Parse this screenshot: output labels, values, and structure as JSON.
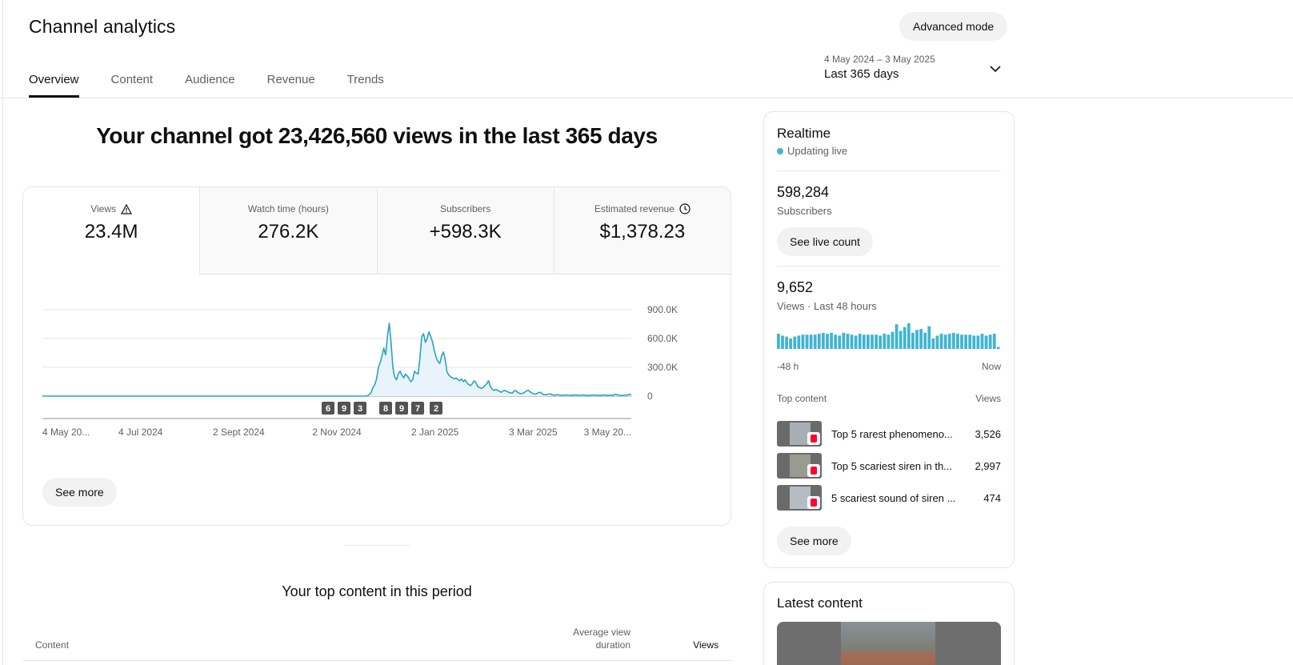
{
  "header": {
    "title": "Channel analytics",
    "advanced_mode": "Advanced mode",
    "tabs": [
      "Overview",
      "Content",
      "Audience",
      "Revenue",
      "Trends"
    ],
    "date_sub": "4 May 2024 – 3 May 2025",
    "date_main": "Last 365 days"
  },
  "main": {
    "headline": "Your channel got 23,426,560 views in the last 365 days",
    "metrics": [
      {
        "label": "Views",
        "value": "23.4M"
      },
      {
        "label": "Watch time (hours)",
        "value": "276.2K"
      },
      {
        "label": "Subscribers",
        "value": "+598.3K"
      },
      {
        "label": "Estimated revenue",
        "value": "$1,378.23"
      }
    ],
    "see_more": "See more",
    "top_content_title": "Your top content in this period",
    "table_headers": {
      "content": "Content",
      "avd": "Average view duration",
      "views": "Views"
    }
  },
  "chart_data": {
    "type": "area",
    "series": [
      {
        "values": [
          0,
          0,
          0,
          0,
          0,
          0,
          0,
          0,
          0,
          0,
          0,
          0,
          0,
          0,
          0,
          0,
          0,
          0,
          0,
          0,
          0,
          0,
          0,
          0,
          0,
          0,
          0,
          0,
          0,
          0,
          0,
          0,
          0,
          0,
          0,
          0,
          0,
          0,
          0,
          0,
          0,
          0,
          0,
          0,
          0,
          0,
          0,
          0,
          0,
          0,
          0,
          0,
          0,
          0,
          0,
          0,
          0,
          0,
          0,
          0,
          0,
          0,
          0,
          0,
          0,
          0,
          0,
          0,
          0,
          0,
          0,
          0,
          0,
          0,
          0,
          0,
          0,
          0,
          0,
          0,
          0,
          0,
          0,
          0,
          0,
          0,
          0,
          0,
          0,
          0,
          0,
          0,
          0,
          0,
          0,
          0,
          0,
          0,
          0,
          0,
          0,
          0,
          0,
          0,
          0,
          0,
          0,
          0,
          0,
          0,
          0,
          0,
          0,
          0,
          0,
          0,
          0,
          0,
          0,
          0,
          0,
          0,
          0,
          0,
          0,
          0,
          0,
          0,
          0,
          0,
          0,
          0,
          0,
          0,
          0,
          0,
          0,
          0,
          0,
          0,
          0,
          0,
          0,
          0,
          0,
          0,
          0,
          0,
          0,
          0,
          0,
          0,
          0,
          0,
          0,
          0,
          0,
          0,
          0,
          0,
          0,
          0,
          0,
          0,
          0,
          0,
          0,
          0,
          0,
          0,
          0,
          0,
          0,
          0,
          0,
          0,
          0,
          0,
          0,
          0,
          5000,
          15000,
          40000,
          90000,
          120000,
          180000,
          300000,
          350000,
          420000,
          500000,
          430000,
          620000,
          760000,
          560000,
          300000,
          200000,
          170000,
          230000,
          260000,
          220000,
          190000,
          230000,
          210000,
          180000,
          150000,
          170000,
          260000,
          240000,
          230000,
          400000,
          620000,
          650000,
          560000,
          600000,
          670000,
          620000,
          560000,
          470000,
          400000,
          360000,
          340000,
          420000,
          460000,
          380000,
          250000,
          220000,
          200000,
          190000,
          180000,
          190000,
          170000,
          160000,
          180000,
          150000,
          170000,
          140000,
          120000,
          110000,
          130000,
          160000,
          140000,
          100000,
          90000,
          80000,
          90000,
          110000,
          130000,
          160000,
          100000,
          70000,
          60000,
          70000,
          60000,
          50000,
          40000,
          55000,
          60000,
          50000,
          40000,
          35000,
          30000,
          50000,
          60000,
          40000,
          30000,
          25000,
          30000,
          40000,
          55000,
          60000,
          45000,
          30000,
          25000,
          20000,
          30000,
          40000,
          35000,
          20000,
          15000,
          15000,
          20000,
          25000,
          15000,
          10000,
          10000,
          15000,
          12000,
          10000,
          8000,
          10000,
          12000,
          10000,
          9000,
          8000,
          10000,
          12000,
          10000,
          8000,
          9000,
          12000,
          10000,
          8000,
          7000,
          9000,
          10000,
          12000,
          10000,
          9000,
          8000,
          7000,
          10000,
          12000,
          9000,
          8000,
          10000,
          9000,
          8000,
          20000,
          15000,
          10000,
          8000,
          7000,
          9000,
          10000,
          12000,
          20000,
          10000
        ]
      }
    ],
    "x_ticks": [
      "4 May 20...",
      "4 Jul 2024",
      "2 Sept 2024",
      "2 Nov 2024",
      "2 Jan 2025",
      "3 Mar 2025",
      "3 May 20..."
    ],
    "y_ticks": [
      "900.0K",
      "600.0K",
      "300.0K",
      "0"
    ],
    "ylim": [
      0,
      900000
    ],
    "markers": [
      "6",
      "9",
      "3",
      "8",
      "9",
      "7",
      "2"
    ],
    "colors": {
      "line": "#2aa3c4",
      "fill": "#e8f4f9",
      "marker_bg": "#535353"
    },
    "grid": true
  },
  "realtime": {
    "title": "Realtime",
    "live": "Updating live",
    "subs_value": "598,284",
    "subs_label": "Subscribers",
    "live_count_btn": "See live count",
    "views_value": "9,652",
    "views_label": "Views · Last 48 hours",
    "spark_left": "-48 h",
    "spark_right": "Now",
    "spark_values": [
      16,
      14,
      13,
      11,
      13,
      14,
      15,
      15,
      15,
      15,
      16,
      17,
      16,
      17,
      15,
      14,
      17,
      16,
      15,
      14,
      16,
      15,
      15,
      15,
      15,
      14,
      16,
      15,
      18,
      26,
      19,
      23,
      27,
      17,
      20,
      21,
      17,
      24,
      11,
      14,
      16,
      15,
      16,
      17,
      16,
      15,
      15,
      15,
      14,
      14,
      16,
      14,
      15,
      16,
      2
    ],
    "top_content_label": "Top content",
    "views_col": "Views",
    "top_items": [
      {
        "title": "Top 5 rarest phenomeno...",
        "views": "3,526"
      },
      {
        "title": "Top 5 scariest siren in th...",
        "views": "2,997"
      },
      {
        "title": "5 scariest sound of siren ...",
        "views": "474"
      }
    ],
    "see_more": "See more"
  },
  "latest": {
    "title": "Latest content"
  }
}
